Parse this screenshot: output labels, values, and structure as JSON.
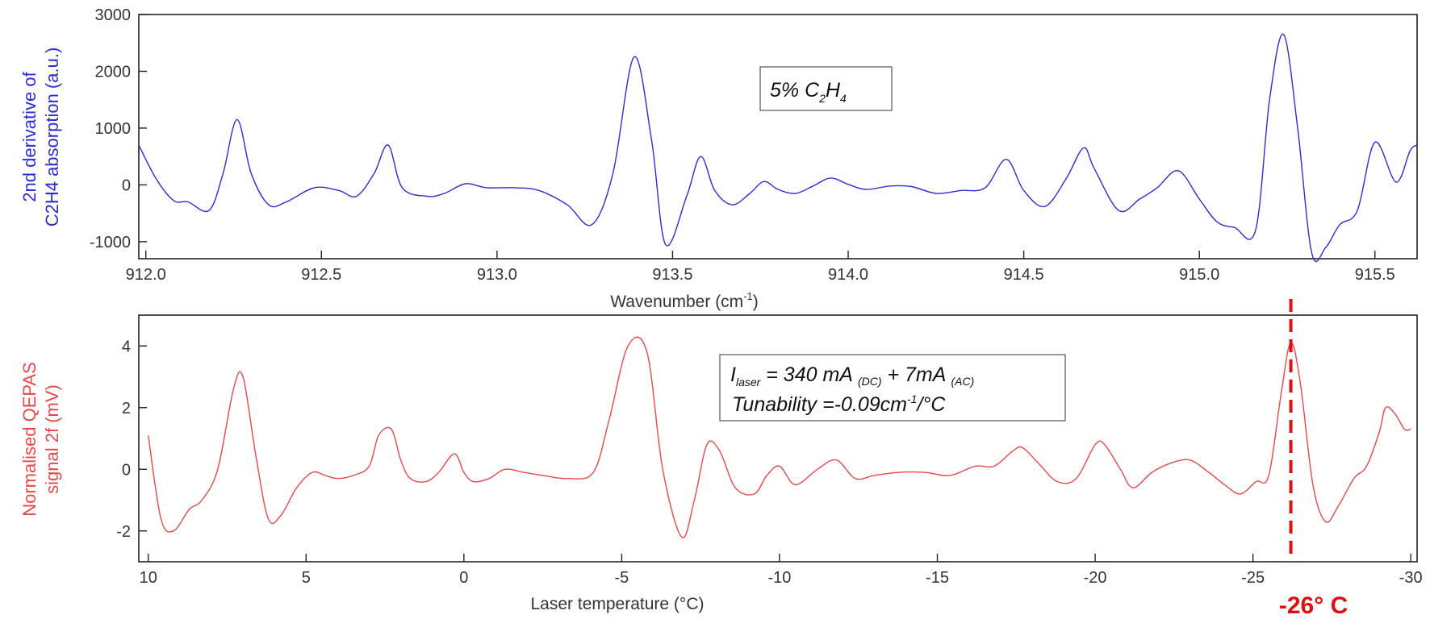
{
  "chart_data": [
    {
      "type": "line",
      "xlabel": "Wavenumber (cm",
      "xlabel_sup": "-1",
      "xlabel_close": ")",
      "ylabel_line1": "2nd derivative of",
      "ylabel_line2": "C2H4 absorption (a.u.)",
      "xlim": [
        911.98,
        915.62
      ],
      "ylim": [
        -1300,
        3000
      ],
      "x_ticks": [
        "912.0",
        "912.5",
        "913.0",
        "913.5",
        "914.0",
        "914.5",
        "915.0",
        "915.5"
      ],
      "y_ticks": [
        "-1000",
        "0",
        "1000",
        "2000",
        "3000"
      ],
      "color": "#2c2cd6",
      "annotation": {
        "prefix": "5% C",
        "sub1": "2",
        "mid": "H",
        "sub2": "4"
      },
      "series": [
        {
          "x": [
            911.98,
            912.03,
            912.08,
            912.12,
            912.18,
            912.22,
            912.26,
            912.3,
            912.35,
            912.4,
            912.48,
            912.55,
            912.6,
            912.65,
            912.69,
            912.73,
            912.8,
            912.85,
            912.91,
            912.97,
            913.05,
            913.12,
            913.2,
            913.27,
            913.33,
            913.39,
            913.44,
            913.48,
            913.54,
            913.58,
            913.62,
            913.67,
            913.72,
            913.76,
            913.8,
            913.85,
            913.9,
            913.95,
            914.0,
            914.05,
            914.12,
            914.18,
            914.25,
            914.32,
            914.39,
            914.45,
            914.5,
            914.56,
            914.62,
            914.67,
            914.7,
            914.77,
            914.83,
            914.88,
            914.94,
            915.0,
            915.05,
            915.1,
            915.16,
            915.2,
            915.24,
            915.28,
            915.32,
            915.36,
            915.4,
            915.45,
            915.5,
            915.56,
            915.6,
            915.62
          ],
          "y": [
            700,
            100,
            -280,
            -300,
            -450,
            200,
            1150,
            200,
            -350,
            -300,
            -50,
            -100,
            -200,
            200,
            700,
            -50,
            -200,
            -150,
            20,
            -50,
            -50,
            -100,
            -350,
            -700,
            200,
            2250,
            800,
            -1050,
            -200,
            500,
            -100,
            -350,
            -150,
            60,
            -80,
            -150,
            -20,
            120,
            10,
            -80,
            -20,
            -30,
            -150,
            -100,
            -50,
            450,
            -100,
            -380,
            100,
            650,
            300,
            -450,
            -250,
            -50,
            250,
            -250,
            -650,
            -750,
            -800,
            1500,
            2650,
            1000,
            -1200,
            -1100,
            -700,
            -450,
            750,
            50,
            600,
            700
          ]
        }
      ]
    },
    {
      "type": "line",
      "xlabel": "Laser temperature (°C)",
      "ylabel_line1": "Normalised QEPAS",
      "ylabel_line2": "signal 2f (mV)",
      "xlim": [
        10.3,
        -30.2
      ],
      "ylim": [
        -3,
        5
      ],
      "x_ticks": [
        "10",
        "5",
        "0",
        "-5",
        "-10",
        "-15",
        "-20",
        "-25",
        "-30"
      ],
      "y_ticks": [
        "-2",
        "0",
        "2",
        "4"
      ],
      "color": "#e8484a",
      "marker_color": "#dd1111",
      "marker_x": -26.2,
      "marker_label": "-26°  C",
      "annotation": {
        "line1_prefix": "I",
        "line1_sub": "laser",
        "line1_mid": " = 340 mA ",
        "line1_sub2": "(DC)",
        "line1_mid2": " + 7mA ",
        "line1_sub3": "(AC)",
        "line2_prefix": "Tunability =-0.09cm",
        "line2_sup": "-1",
        "line2_suffix": "/°C"
      },
      "series": [
        {
          "x": [
            10.0,
            9.6,
            9.2,
            8.7,
            8.3,
            7.8,
            7.3,
            7.0,
            6.6,
            6.2,
            5.8,
            5.3,
            4.8,
            4.4,
            4.0,
            3.5,
            3.0,
            2.7,
            2.3,
            2.0,
            1.7,
            1.2,
            0.8,
            0.3,
            0.0,
            -0.3,
            -0.8,
            -1.3,
            -1.9,
            -2.5,
            -3.3,
            -4.1,
            -4.6,
            -5.2,
            -5.8,
            -6.3,
            -6.9,
            -7.3,
            -7.7,
            -8.1,
            -8.6,
            -9.2,
            -9.6,
            -10.0,
            -10.5,
            -11.2,
            -11.8,
            -12.4,
            -13.0,
            -13.8,
            -14.6,
            -15.4,
            -16.2,
            -16.8,
            -17.4,
            -17.7,
            -18.2,
            -18.8,
            -19.4,
            -20.0,
            -20.3,
            -20.8,
            -21.2,
            -21.8,
            -22.4,
            -23.0,
            -23.6,
            -24.1,
            -24.6,
            -25.1,
            -25.5,
            -25.9,
            -26.2,
            -26.5,
            -26.9,
            -27.3,
            -27.7,
            -28.2,
            -28.6,
            -29.0,
            -29.2,
            -29.5,
            -29.8,
            -30.0
          ],
          "y": [
            1.1,
            -1.6,
            -2.0,
            -1.3,
            -1.0,
            0.0,
            2.6,
            3.0,
            0.5,
            -1.6,
            -1.5,
            -0.6,
            -0.1,
            -0.2,
            -0.3,
            -0.2,
            0.1,
            1.1,
            1.3,
            0.3,
            -0.3,
            -0.4,
            -0.1,
            0.5,
            -0.1,
            -0.4,
            -0.3,
            0.0,
            -0.1,
            -0.2,
            -0.3,
            -0.1,
            1.6,
            4.0,
            3.8,
            0.0,
            -2.2,
            -1.0,
            0.8,
            0.6,
            -0.6,
            -0.8,
            -0.2,
            0.1,
            -0.5,
            0.0,
            0.3,
            -0.3,
            -0.2,
            -0.1,
            -0.1,
            -0.2,
            0.1,
            0.1,
            0.6,
            0.7,
            0.2,
            -0.4,
            -0.3,
            0.8,
            0.8,
            0.0,
            -0.6,
            -0.1,
            0.2,
            0.3,
            -0.1,
            -0.5,
            -0.8,
            -0.4,
            -0.2,
            2.5,
            4.1,
            2.8,
            -0.5,
            -1.7,
            -1.2,
            -0.3,
            0.1,
            1.2,
            2.0,
            1.8,
            1.3,
            1.3
          ]
        }
      ]
    }
  ]
}
